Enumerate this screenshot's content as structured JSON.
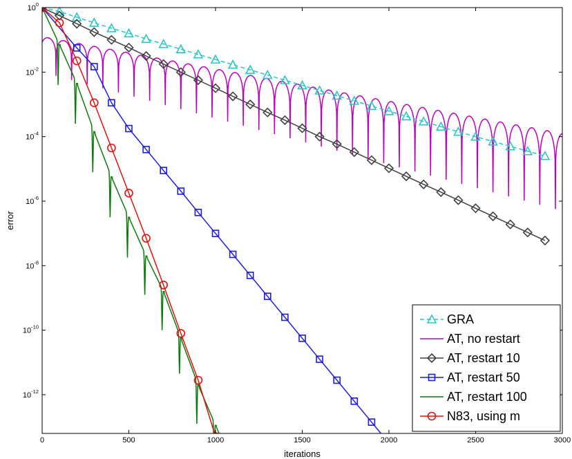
{
  "chart_data": {
    "type": "line",
    "title": "",
    "xlabel": "iterations",
    "ylabel": "error",
    "xlim": [
      0,
      3000
    ],
    "ylim_log10": [
      -13.2,
      0
    ],
    "y_scale": "log",
    "grid": false,
    "legend_placement": "bottom-right",
    "x_ticks": [
      {
        "value": 0,
        "label": "0"
      },
      {
        "value": 500,
        "label": "500"
      },
      {
        "value": 1000,
        "label": "1000"
      },
      {
        "value": 1500,
        "label": "1500"
      },
      {
        "value": 2000,
        "label": "2000"
      },
      {
        "value": 2500,
        "label": "2500"
      },
      {
        "value": 3000,
        "label": "3000"
      }
    ],
    "y_ticks": [
      {
        "exp": 0,
        "base": "10",
        "power": "0"
      },
      {
        "exp": -2,
        "base": "10",
        "power": "-2"
      },
      {
        "exp": -4,
        "base": "10",
        "power": "-4"
      },
      {
        "exp": -6,
        "base": "10",
        "power": "-6"
      },
      {
        "exp": -8,
        "base": "10",
        "power": "-8"
      },
      {
        "exp": -10,
        "base": "10",
        "power": "-10"
      },
      {
        "exp": -12,
        "base": "10",
        "power": "-12"
      }
    ],
    "series": [
      {
        "name": "GRA",
        "color": "#2ec4c4",
        "dash": true,
        "marker": "triangle",
        "x": [
          0,
          100,
          200,
          300,
          400,
          500,
          600,
          700,
          800,
          900,
          1000,
          1100,
          1200,
          1300,
          1400,
          1500,
          1600,
          1700,
          1800,
          1900,
          2000,
          2100,
          2200,
          2300,
          2400,
          2500,
          2600,
          2700,
          2800,
          2900
        ],
        "log10_y": [
          0,
          -0.12,
          -0.3,
          -0.47,
          -0.64,
          -0.8,
          -0.97,
          -1.13,
          -1.29,
          -1.45,
          -1.61,
          -1.77,
          -1.93,
          -2.09,
          -2.25,
          -2.41,
          -2.57,
          -2.73,
          -2.89,
          -3.05,
          -3.21,
          -3.37,
          -3.53,
          -3.69,
          -3.85,
          -4.0,
          -4.15,
          -4.3,
          -4.45,
          -4.6
        ]
      },
      {
        "name": "AT, no restart",
        "color": "#bb00bb",
        "dash": false,
        "marker": "none",
        "envelope_log10_start": -0.9,
        "envelope_log10_end": -3.9,
        "oscillation_period_iterations": 90,
        "trough_log10_start": -2.0,
        "trough_log10_end": -6.3
      },
      {
        "name": "AT, restart 10",
        "color": "#404040",
        "dash": false,
        "marker": "diamond",
        "x": [
          0,
          100,
          200,
          300,
          400,
          500,
          600,
          700,
          800,
          900,
          1000,
          1100,
          1200,
          1300,
          1400,
          1500,
          1600,
          1700,
          1800,
          1900,
          2000,
          2100,
          2200,
          2300,
          2400,
          2500,
          2600,
          2700,
          2800,
          2900
        ],
        "log10_y": [
          0,
          -0.25,
          -0.5,
          -0.76,
          -1.0,
          -1.24,
          -1.5,
          -1.75,
          -2.0,
          -2.25,
          -2.5,
          -2.75,
          -3.0,
          -3.25,
          -3.49,
          -3.74,
          -4.0,
          -4.23,
          -4.48,
          -4.73,
          -4.98,
          -5.23,
          -5.48,
          -5.72,
          -5.97,
          -6.22,
          -6.47,
          -6.72,
          -6.97,
          -7.22
        ]
      },
      {
        "name": "AT, restart 50",
        "color": "#1c1cdc",
        "dash": false,
        "marker": "square",
        "x": [
          0,
          200,
          300,
          400,
          500,
          600,
          700,
          800,
          900,
          1000,
          1100,
          1200,
          1300,
          1400,
          1500,
          1600,
          1700,
          1800,
          1900,
          2000,
          2100
        ],
        "log10_y": [
          0,
          -1.25,
          -1.83,
          -2.95,
          -3.75,
          -4.4,
          -5.05,
          -5.69,
          -6.35,
          -7.0,
          -7.65,
          -8.3,
          -8.95,
          -9.6,
          -10.25,
          -10.9,
          -11.55,
          -12.2,
          -12.85,
          -13.5,
          -14.2
        ]
      },
      {
        "name": "AT, restart 100",
        "color": "#0b7a0b",
        "dash": false,
        "marker": "none",
        "segment_length": 100,
        "segment_peaks_log10": [
          0,
          -1.15,
          -2.35,
          -3.85,
          -5.25,
          -6.5,
          -7.7,
          -8.8,
          -10.25,
          -11.7,
          -12.95
        ],
        "segment_troughs_log10": [
          -2.4,
          -3.6,
          -5.1,
          -6.5,
          -7.75,
          -8.9,
          -10.0,
          -11.35,
          -12.9,
          -14.5,
          -15.0
        ]
      },
      {
        "name": "N83, using m",
        "color": "#e01010",
        "dash": false,
        "marker": "circle",
        "x": [
          0,
          100,
          200,
          300,
          400,
          500,
          600,
          700,
          800,
          900,
          1000
        ],
        "log10_y": [
          0,
          -0.47,
          -1.65,
          -2.95,
          -4.35,
          -5.75,
          -7.15,
          -8.6,
          -10.1,
          -11.55,
          -13.3
        ]
      }
    ]
  }
}
